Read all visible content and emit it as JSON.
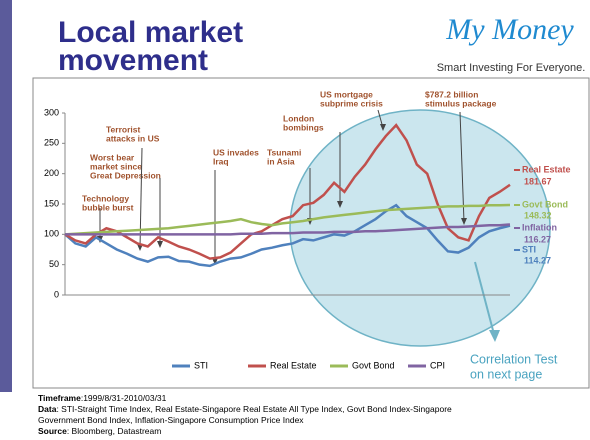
{
  "header": {
    "title_lines": [
      "Local market",
      "movement"
    ],
    "logo": "My Money",
    "tagline": "Smart Investing For Everyone."
  },
  "chart_data": {
    "type": "line",
    "categories": [
      null,
      null,
      null,
      null,
      null,
      null,
      null,
      null,
      null,
      null,
      null,
      null,
      null,
      null,
      null,
      null,
      null,
      null,
      null,
      null,
      null,
      null,
      null,
      null,
      null,
      null,
      null,
      null,
      null,
      null,
      null,
      null,
      null,
      null,
      null,
      null,
      null,
      null,
      null,
      null,
      null,
      null,
      null,
      null
    ],
    "series": [
      {
        "name": "STI",
        "color": "#4f81bd",
        "values": [
          100,
          85,
          80,
          95,
          85,
          75,
          68,
          60,
          55,
          62,
          63,
          56,
          55,
          50,
          48,
          55,
          60,
          62,
          68,
          75,
          78,
          82,
          85,
          92,
          90,
          95,
          100,
          98,
          105,
          115,
          125,
          138,
          148,
          130,
          120,
          110,
          90,
          72,
          70,
          78,
          95,
          105,
          110,
          114.27
        ]
      },
      {
        "name": "Real Estate",
        "color": "#c0504d",
        "values": [
          100,
          90,
          85,
          100,
          110,
          105,
          95,
          85,
          80,
          95,
          88,
          80,
          75,
          68,
          60,
          62,
          70,
          85,
          100,
          105,
          115,
          125,
          130,
          148,
          152,
          165,
          185,
          170,
          195,
          215,
          240,
          262,
          280,
          255,
          215,
          200,
          150,
          110,
          95,
          90,
          130,
          160,
          170,
          181.67
        ]
      },
      {
        "name": "Govt Bond",
        "color": "#9bbb59",
        "values": [
          100,
          101,
          102,
          103,
          104,
          105,
          106,
          107,
          108,
          109,
          110,
          112,
          114,
          116,
          118,
          120,
          122,
          125,
          120,
          117,
          115,
          118,
          120,
          122,
          125,
          128,
          130,
          132,
          134,
          136,
          138,
          140,
          141,
          142,
          143,
          144,
          145,
          146,
          146,
          147,
          147,
          148,
          148,
          148.32
        ]
      },
      {
        "name": "CPI",
        "color": "#8064a2",
        "values": [
          100,
          100,
          100,
          100,
          100,
          100,
          100,
          100,
          100,
          100,
          100,
          100,
          100,
          100,
          100,
          100,
          100,
          101,
          101,
          101,
          102,
          102,
          102,
          103,
          103,
          103,
          104,
          104,
          104,
          105,
          105,
          106,
          107,
          108,
          109,
          110,
          111,
          112,
          112,
          113,
          114,
          115,
          115,
          116.27
        ]
      }
    ],
    "ylim": [
      0,
      300
    ],
    "yticks": [
      0,
      50,
      100,
      150,
      200,
      250,
      300
    ],
    "grid": false,
    "legend": "bottom",
    "end_labels": [
      "Real Estate",
      "Govt Bond",
      "Inflation",
      "STI"
    ],
    "annotations": [
      {
        "lines": [
          "Technology",
          "bubble burst"
        ]
      },
      {
        "lines": [
          "Worst bear",
          "market since",
          "Great Depression"
        ]
      },
      {
        "lines": [
          "Terrorist",
          "attacks in US"
        ]
      },
      {
        "lines": [
          "US invades",
          "Iraq"
        ]
      },
      {
        "lines": [
          "Tsunami",
          "in Asia"
        ]
      },
      {
        "lines": [
          "London",
          "bombings"
        ]
      },
      {
        "lines": [
          "US mortgage",
          "subprime crisis"
        ]
      },
      {
        "lines": [
          "$787.2 billion",
          "stimulus package"
        ]
      }
    ],
    "note_lines": [
      "Correlation Test",
      "on next page"
    ]
  },
  "footer": [
    {
      "bold": "Timeframe",
      "text": ":1999/8/31-2010/03/31"
    },
    {
      "bold": "Data",
      "text": ": STI-Straight Time Index, Real Estate-Singapore Real Estate All Type Index, Govt Bond Index-Singapore"
    },
    {
      "text": "Government Bond Index, Inflation-Singapore Consumption Price Index"
    },
    {
      "bold": "Source",
      "text": ": Bloomberg, Datastream"
    }
  ]
}
